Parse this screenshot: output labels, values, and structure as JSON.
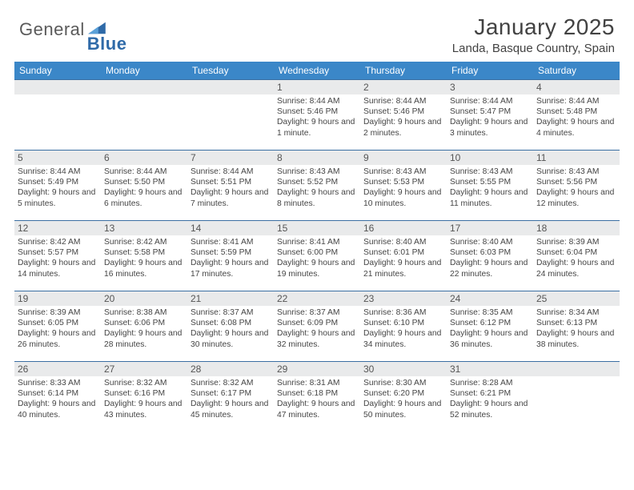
{
  "brand": {
    "general": "General",
    "blue": "Blue"
  },
  "colors": {
    "header_bg": "#3b87c8",
    "row_border": "#3b6fa3",
    "daynum_bg": "#e9eaeb",
    "logo_blue": "#2f6aa8"
  },
  "title": "January 2025",
  "subtitle": "Landa, Basque Country, Spain",
  "weekdays": [
    "Sunday",
    "Monday",
    "Tuesday",
    "Wednesday",
    "Thursday",
    "Friday",
    "Saturday"
  ],
  "cells": [
    {
      "n": "",
      "sr": "",
      "ss": "",
      "dl": ""
    },
    {
      "n": "",
      "sr": "",
      "ss": "",
      "dl": ""
    },
    {
      "n": "",
      "sr": "",
      "ss": "",
      "dl": ""
    },
    {
      "n": "1",
      "sr": "8:44 AM",
      "ss": "5:46 PM",
      "dl": "9 hours and 1 minute."
    },
    {
      "n": "2",
      "sr": "8:44 AM",
      "ss": "5:46 PM",
      "dl": "9 hours and 2 minutes."
    },
    {
      "n": "3",
      "sr": "8:44 AM",
      "ss": "5:47 PM",
      "dl": "9 hours and 3 minutes."
    },
    {
      "n": "4",
      "sr": "8:44 AM",
      "ss": "5:48 PM",
      "dl": "9 hours and 4 minutes."
    },
    {
      "n": "5",
      "sr": "8:44 AM",
      "ss": "5:49 PM",
      "dl": "9 hours and 5 minutes."
    },
    {
      "n": "6",
      "sr": "8:44 AM",
      "ss": "5:50 PM",
      "dl": "9 hours and 6 minutes."
    },
    {
      "n": "7",
      "sr": "8:44 AM",
      "ss": "5:51 PM",
      "dl": "9 hours and 7 minutes."
    },
    {
      "n": "8",
      "sr": "8:43 AM",
      "ss": "5:52 PM",
      "dl": "9 hours and 8 minutes."
    },
    {
      "n": "9",
      "sr": "8:43 AM",
      "ss": "5:53 PM",
      "dl": "9 hours and 10 minutes."
    },
    {
      "n": "10",
      "sr": "8:43 AM",
      "ss": "5:55 PM",
      "dl": "9 hours and 11 minutes."
    },
    {
      "n": "11",
      "sr": "8:43 AM",
      "ss": "5:56 PM",
      "dl": "9 hours and 12 minutes."
    },
    {
      "n": "12",
      "sr": "8:42 AM",
      "ss": "5:57 PM",
      "dl": "9 hours and 14 minutes."
    },
    {
      "n": "13",
      "sr": "8:42 AM",
      "ss": "5:58 PM",
      "dl": "9 hours and 16 minutes."
    },
    {
      "n": "14",
      "sr": "8:41 AM",
      "ss": "5:59 PM",
      "dl": "9 hours and 17 minutes."
    },
    {
      "n": "15",
      "sr": "8:41 AM",
      "ss": "6:00 PM",
      "dl": "9 hours and 19 minutes."
    },
    {
      "n": "16",
      "sr": "8:40 AM",
      "ss": "6:01 PM",
      "dl": "9 hours and 21 minutes."
    },
    {
      "n": "17",
      "sr": "8:40 AM",
      "ss": "6:03 PM",
      "dl": "9 hours and 22 minutes."
    },
    {
      "n": "18",
      "sr": "8:39 AM",
      "ss": "6:04 PM",
      "dl": "9 hours and 24 minutes."
    },
    {
      "n": "19",
      "sr": "8:39 AM",
      "ss": "6:05 PM",
      "dl": "9 hours and 26 minutes."
    },
    {
      "n": "20",
      "sr": "8:38 AM",
      "ss": "6:06 PM",
      "dl": "9 hours and 28 minutes."
    },
    {
      "n": "21",
      "sr": "8:37 AM",
      "ss": "6:08 PM",
      "dl": "9 hours and 30 minutes."
    },
    {
      "n": "22",
      "sr": "8:37 AM",
      "ss": "6:09 PM",
      "dl": "9 hours and 32 minutes."
    },
    {
      "n": "23",
      "sr": "8:36 AM",
      "ss": "6:10 PM",
      "dl": "9 hours and 34 minutes."
    },
    {
      "n": "24",
      "sr": "8:35 AM",
      "ss": "6:12 PM",
      "dl": "9 hours and 36 minutes."
    },
    {
      "n": "25",
      "sr": "8:34 AM",
      "ss": "6:13 PM",
      "dl": "9 hours and 38 minutes."
    },
    {
      "n": "26",
      "sr": "8:33 AM",
      "ss": "6:14 PM",
      "dl": "9 hours and 40 minutes."
    },
    {
      "n": "27",
      "sr": "8:32 AM",
      "ss": "6:16 PM",
      "dl": "9 hours and 43 minutes."
    },
    {
      "n": "28",
      "sr": "8:32 AM",
      "ss": "6:17 PM",
      "dl": "9 hours and 45 minutes."
    },
    {
      "n": "29",
      "sr": "8:31 AM",
      "ss": "6:18 PM",
      "dl": "9 hours and 47 minutes."
    },
    {
      "n": "30",
      "sr": "8:30 AM",
      "ss": "6:20 PM",
      "dl": "9 hours and 50 minutes."
    },
    {
      "n": "31",
      "sr": "8:28 AM",
      "ss": "6:21 PM",
      "dl": "9 hours and 52 minutes."
    },
    {
      "n": "",
      "sr": "",
      "ss": "",
      "dl": ""
    }
  ],
  "labels": {
    "sunrise": "Sunrise:",
    "sunset": "Sunset:",
    "daylight": "Daylight:"
  }
}
